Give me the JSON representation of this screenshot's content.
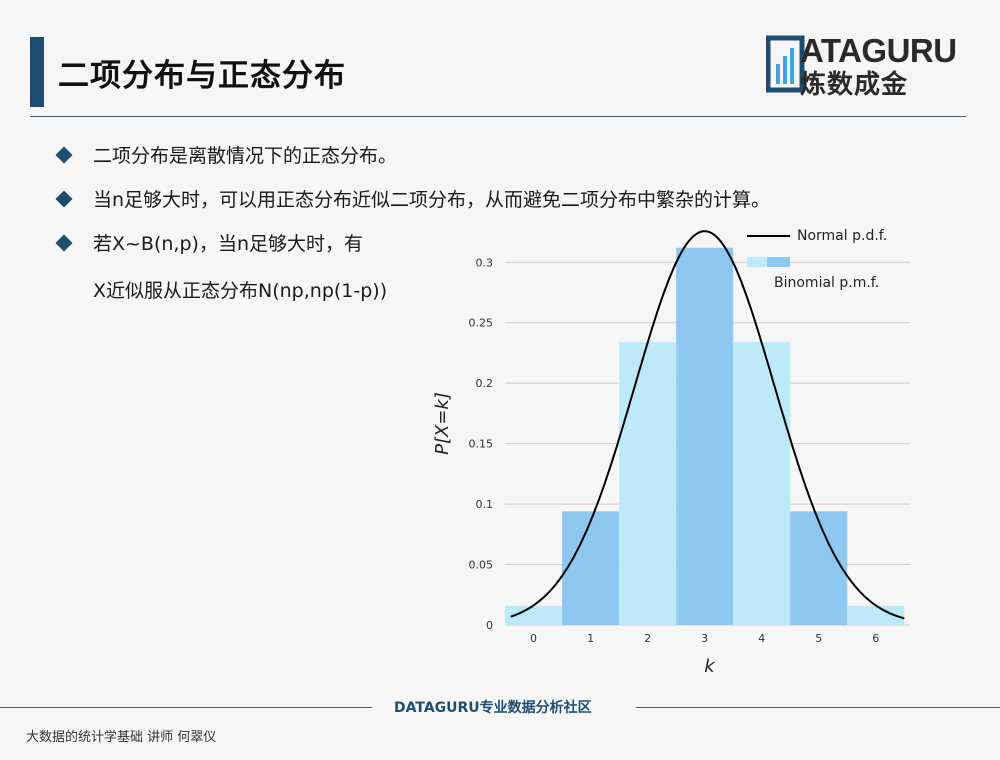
{
  "slide": {
    "title": "二项分布与正态分布",
    "bullets": [
      "二项分布是离散情况下的正态分布。",
      "当n足够大时，可以用正态分布近似二项分布，从而避免二项分布中繁杂的计算。",
      "若X~B(n,p)，当n足够大时，有",
      "X近似服从正态分布N(np,np(1-p))"
    ]
  },
  "logo": {
    "line1": "ATAGURU",
    "line2": "炼数成金"
  },
  "footer": {
    "center": "DATAGURU专业数据分析社区",
    "left": "大数据的统计学基础   讲师 何翠仪"
  },
  "chart_data": {
    "type": "bar",
    "categories": [
      "0",
      "1",
      "2",
      "3",
      "4",
      "5",
      "6"
    ],
    "x": [
      0,
      1,
      2,
      3,
      4,
      5,
      6
    ],
    "series": [
      {
        "name": "Binomial p.m.f.",
        "values": [
          0.016,
          0.094,
          0.234,
          0.312,
          0.234,
          0.094,
          0.016
        ]
      },
      {
        "name": "Normal p.d.f.",
        "type": "line",
        "mean": 3,
        "sd": 1.2247
      }
    ],
    "yticks": [
      "0",
      "0.05",
      "0.1",
      "0.15",
      "0.2",
      "0.25",
      "0.3"
    ],
    "xlabel": "k",
    "ylabel": "P[X=k]",
    "xlim": [
      -0.5,
      6.6
    ],
    "ylim": [
      0,
      0.33
    ],
    "grid": true,
    "legend": "top-right",
    "colors": {
      "light": "#bdeaf8",
      "dark": "#8ec7f0",
      "line": "#000000",
      "grid": "#cccccc"
    }
  }
}
